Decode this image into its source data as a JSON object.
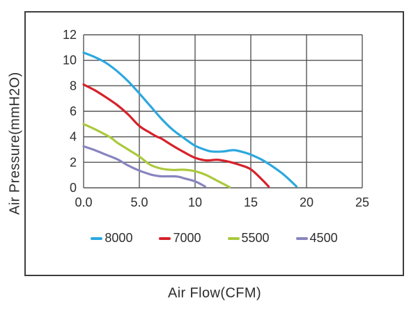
{
  "chart_data": {
    "type": "line",
    "title": "",
    "xlabel": "Air Flow(CFM)",
    "ylabel": "Air Pressure(mmH2O)",
    "xlim": [
      0,
      25
    ],
    "ylim": [
      0,
      12
    ],
    "grid": true,
    "legend_position": "bottom",
    "x_ticks": {
      "values": [
        0,
        5,
        10,
        15,
        20,
        25
      ],
      "labels": [
        "0.0",
        "5.0",
        "10",
        "15",
        "20",
        "25"
      ]
    },
    "y_ticks": {
      "values": [
        0,
        2,
        4,
        6,
        8,
        10,
        12
      ],
      "labels": [
        "0",
        "2",
        "4",
        "6",
        "8",
        "10",
        "12"
      ]
    },
    "series": [
      {
        "name": "8000",
        "color": "#2BA8DF",
        "points": [
          [
            0,
            10.6
          ],
          [
            1,
            10.25
          ],
          [
            2,
            9.8
          ],
          [
            3,
            9.15
          ],
          [
            4,
            8.35
          ],
          [
            5,
            7.4
          ],
          [
            6,
            6.4
          ],
          [
            7,
            5.4
          ],
          [
            8,
            4.55
          ],
          [
            9,
            3.9
          ],
          [
            10,
            3.3
          ],
          [
            11,
            2.95
          ],
          [
            11.5,
            2.85
          ],
          [
            12.5,
            2.85
          ],
          [
            13.5,
            2.95
          ],
          [
            14.5,
            2.75
          ],
          [
            15,
            2.6
          ],
          [
            16,
            2.2
          ],
          [
            17,
            1.65
          ],
          [
            18,
            1.0
          ],
          [
            19.1,
            0.1
          ]
        ]
      },
      {
        "name": "7000",
        "color": "#D6212A",
        "points": [
          [
            0,
            8.1
          ],
          [
            1,
            7.65
          ],
          [
            2,
            7.1
          ],
          [
            3,
            6.5
          ],
          [
            4,
            5.75
          ],
          [
            5,
            4.85
          ],
          [
            6,
            4.3
          ],
          [
            6.6,
            4.0
          ],
          [
            7,
            3.85
          ],
          [
            8,
            3.3
          ],
          [
            9,
            2.8
          ],
          [
            10,
            2.35
          ],
          [
            11,
            2.15
          ],
          [
            12,
            2.2
          ],
          [
            13,
            2.05
          ],
          [
            14,
            1.8
          ],
          [
            15,
            1.45
          ],
          [
            16,
            0.65
          ],
          [
            16.6,
            0.1
          ]
        ]
      },
      {
        "name": "5500",
        "color": "#ABC93C",
        "points": [
          [
            0,
            5.0
          ],
          [
            1,
            4.6
          ],
          [
            2,
            4.15
          ],
          [
            2.5,
            3.9
          ],
          [
            3,
            3.55
          ],
          [
            4,
            3.0
          ],
          [
            5,
            2.45
          ],
          [
            6,
            1.8
          ],
          [
            7,
            1.5
          ],
          [
            8,
            1.4
          ],
          [
            9,
            1.42
          ],
          [
            10,
            1.3
          ],
          [
            11,
            1.0
          ],
          [
            12,
            0.55
          ],
          [
            13.1,
            0.05
          ]
        ]
      },
      {
        "name": "4500",
        "color": "#8885BE",
        "points": [
          [
            0,
            3.25
          ],
          [
            1,
            2.95
          ],
          [
            2,
            2.6
          ],
          [
            3,
            2.25
          ],
          [
            3.5,
            2.0
          ],
          [
            4,
            1.75
          ],
          [
            5,
            1.35
          ],
          [
            6,
            1.05
          ],
          [
            6.5,
            0.95
          ],
          [
            7,
            0.9
          ],
          [
            8,
            0.9
          ],
          [
            8.5,
            0.87
          ],
          [
            9,
            0.75
          ],
          [
            10,
            0.5
          ],
          [
            10.9,
            0.1
          ]
        ]
      }
    ],
    "colors": {
      "background": "#ffffff",
      "grid": "#555555",
      "border": "#3d3d3d",
      "text": "#2d2d2d"
    }
  }
}
